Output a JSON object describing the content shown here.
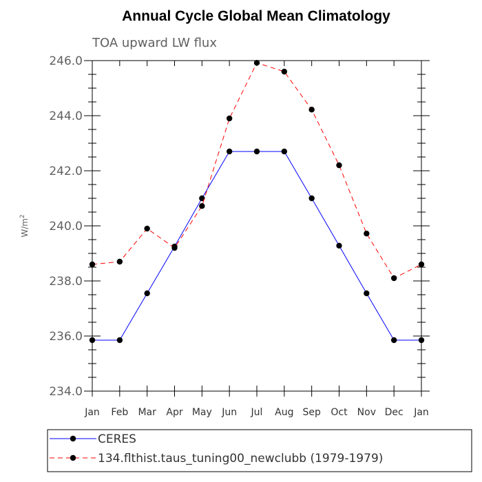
{
  "chart_data": {
    "type": "line",
    "title": "Annual Cycle Global Mean Climatology",
    "subtitle": "TOA upward LW flux",
    "xlabel": "",
    "ylabel": "W/m",
    "ylabel_sup": "2",
    "categories": [
      "Jan",
      "Feb",
      "Mar",
      "Apr",
      "May",
      "Jun",
      "Jul",
      "Aug",
      "Sep",
      "Oct",
      "Nov",
      "Dec",
      "Jan"
    ],
    "ylim": [
      234.0,
      246.0
    ],
    "yticks": [
      "234.0",
      "236.0",
      "238.0",
      "240.0",
      "242.0",
      "244.0",
      "246.0"
    ],
    "grid": false,
    "legend_position": "bottom",
    "series": [
      {
        "name": "CERES",
        "color": "#0000ff",
        "style": "solid",
        "values": [
          235.85,
          235.85,
          237.55,
          239.25,
          241.0,
          242.7,
          242.7,
          242.7,
          241.0,
          239.28,
          237.55,
          235.85,
          235.85
        ]
      },
      {
        "name": "134.flthist.taus_tuning00_newclubb (1979-1979)",
        "color": "#ff0000",
        "style": "dashed",
        "values": [
          238.6,
          238.7,
          239.9,
          239.2,
          240.72,
          243.9,
          245.92,
          245.6,
          244.22,
          242.2,
          239.72,
          238.1,
          238.6
        ]
      }
    ]
  }
}
